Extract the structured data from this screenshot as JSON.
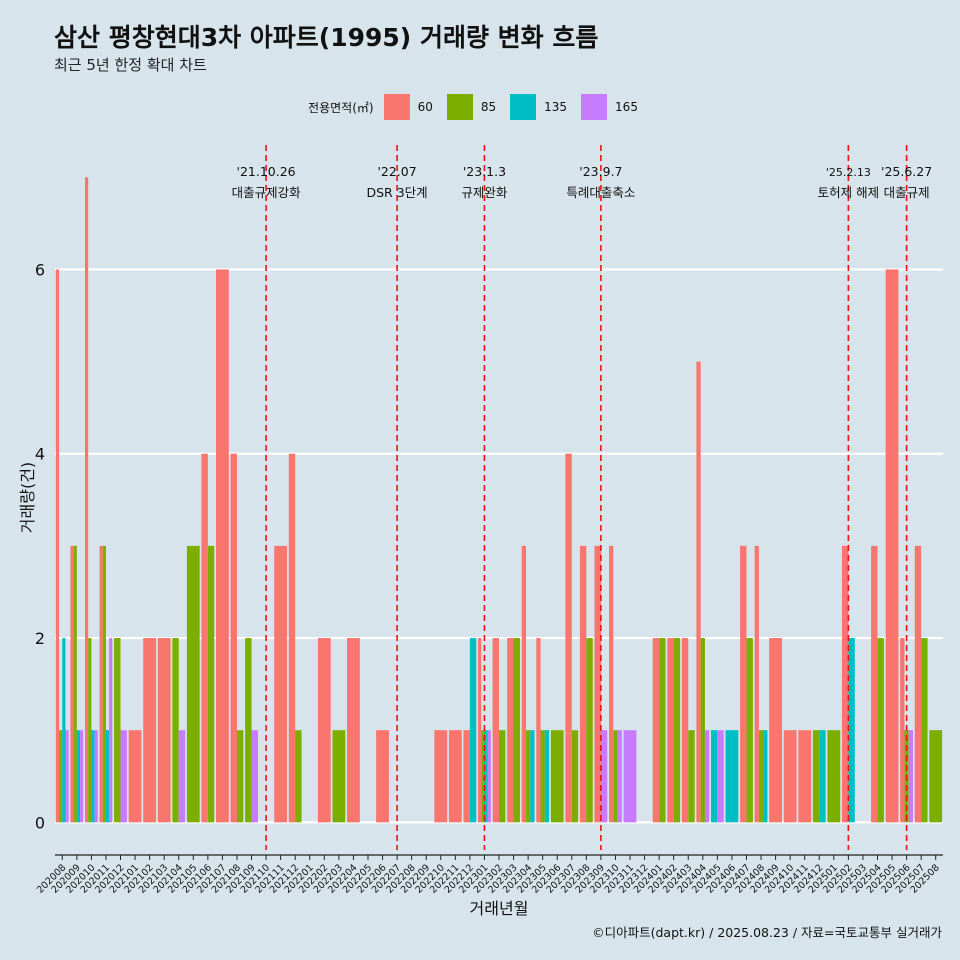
{
  "title": "삼산 평창현대3차 아파트(1995) 거래량 변화 흐름",
  "subtitle": "최근 5년 한정 확대 차트",
  "caption": "©디아파트(dapt.kr) / 2025.08.23 / 자료=국토교통부 실거래가",
  "chart_data": {
    "type": "bar",
    "xlabel": "거래년월",
    "ylabel": "거래량(건)",
    "ylim": [
      -0.3,
      7.35
    ],
    "yticks": [
      0,
      2,
      4,
      6
    ],
    "grid": true,
    "legend_position": "top",
    "legend_title": "전용면적(㎡)",
    "categories": [
      "202008",
      "202009",
      "202010",
      "202011",
      "202012",
      "202101",
      "202102",
      "202103",
      "202104",
      "202105",
      "202106",
      "202107",
      "202108",
      "202109",
      "202110",
      "202111",
      "202112",
      "202201",
      "202202",
      "202203",
      "202204",
      "202205",
      "202206",
      "202207",
      "202208",
      "202209",
      "202210",
      "202211",
      "202212",
      "202301",
      "202302",
      "202303",
      "202304",
      "202305",
      "202306",
      "202307",
      "202308",
      "202309",
      "202310",
      "202311",
      "202312",
      "202401",
      "202402",
      "202403",
      "202404",
      "202405",
      "202406",
      "202407",
      "202408",
      "202409",
      "202410",
      "202411",
      "202412",
      "202501",
      "202502",
      "202503",
      "202504",
      "202505",
      "202506",
      "202507",
      "202508"
    ],
    "series": [
      {
        "name": "60",
        "color": "#f8766d",
        "values": [
          6,
          3,
          7,
          3,
          0,
          1,
          2,
          2,
          0,
          0,
          4,
          6,
          4,
          0,
          0,
          3,
          4,
          0,
          2,
          0,
          2,
          0,
          1,
          0,
          0,
          0,
          1,
          1,
          1,
          2,
          2,
          2,
          3,
          2,
          0,
          4,
          3,
          3,
          3,
          0,
          0,
          2,
          2,
          2,
          5,
          0,
          0,
          3,
          3,
          2,
          1,
          1,
          0,
          0,
          3,
          0,
          3,
          6,
          2,
          3,
          0
        ]
      },
      {
        "name": "85",
        "color": "#7cae00",
        "values": [
          1,
          3,
          2,
          3,
          2,
          0,
          0,
          0,
          2,
          3,
          3,
          0,
          1,
          2,
          0,
          0,
          1,
          0,
          0,
          1,
          0,
          0,
          0,
          0,
          0,
          0,
          0,
          0,
          0,
          1,
          1,
          2,
          1,
          1,
          1,
          1,
          2,
          0,
          1,
          0,
          0,
          2,
          2,
          1,
          2,
          0,
          0,
          2,
          1,
          0,
          0,
          0,
          1,
          1,
          0,
          0,
          2,
          0,
          1,
          2,
          1
        ]
      },
      {
        "name": "135",
        "color": "#00bfc4",
        "values": [
          2,
          1,
          1,
          1,
          0,
          0,
          0,
          0,
          0,
          0,
          0,
          0,
          0,
          0,
          0,
          0,
          0,
          0,
          0,
          0,
          0,
          0,
          0,
          0,
          0,
          0,
          0,
          0,
          2,
          1,
          0,
          0,
          1,
          1,
          0,
          0,
          0,
          0,
          0,
          0,
          0,
          0,
          0,
          0,
          0,
          1,
          1,
          0,
          1,
          0,
          0,
          0,
          1,
          0,
          2,
          0,
          0,
          0,
          0,
          0,
          0
        ]
      },
      {
        "name": "165",
        "color": "#c77cff",
        "values": [
          1,
          1,
          1,
          2,
          1,
          0,
          0,
          0,
          1,
          0,
          0,
          0,
          0,
          1,
          0,
          0,
          0,
          0,
          0,
          0,
          0,
          0,
          0,
          0,
          0,
          0,
          0,
          0,
          0,
          1,
          0,
          0,
          0,
          0,
          0,
          0,
          0,
          1,
          1,
          1,
          0,
          0,
          0,
          0,
          1,
          1,
          0,
          0,
          0,
          0,
          0,
          0,
          0,
          0,
          0,
          0,
          0,
          0,
          1,
          0,
          0
        ]
      }
    ],
    "events": [
      {
        "date": "'21.10.26",
        "label": "대출규제강화",
        "position": 14.5
      },
      {
        "date": "'22.07",
        "label": "DSR 3단계",
        "position": 23.5
      },
      {
        "date": "'23.1.3",
        "label": "규제완화",
        "position": 29.5
      },
      {
        "date": "'23.9.7",
        "label": "특례대출축소",
        "position": 37.5
      },
      {
        "date": "'25.2.13",
        "label": "토허제 해제",
        "position": 54.5
      },
      {
        "date": "'25.6.27",
        "label": "대출규제",
        "position": 58.5
      }
    ]
  }
}
